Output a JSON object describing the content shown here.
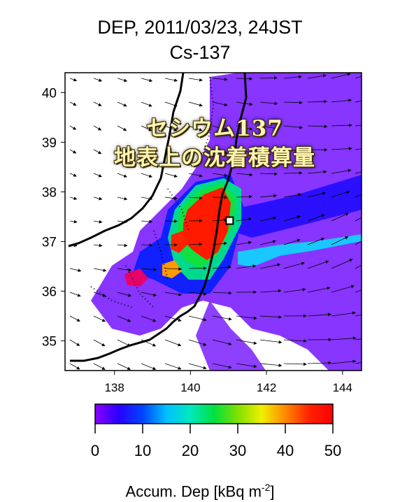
{
  "title_line1": "DEP, 2011/03/23,  24JST",
  "title_line2": "Cs-137",
  "overlay_line1": "セシウム137",
  "overlay_line2": "地表上の沈着積算量",
  "colorbar": {
    "label_main": "Accum. Dep [kBq m",
    "label_exp": "-2",
    "label_close": "]",
    "ticks": [
      0,
      10,
      20,
      30,
      40,
      50
    ],
    "range": [
      0,
      50
    ],
    "stops": [
      "#8a00ff",
      "#2a00ff",
      "#0044ff",
      "#00c0ff",
      "#00e8c0",
      "#00e040",
      "#80e000",
      "#f0f000",
      "#ff8800",
      "#ff2200",
      "#ff0000"
    ]
  },
  "chart_data": {
    "type": "heatmap",
    "title": "DEP, 2011/03/23,  24JST",
    "subtitle": "Cs-137",
    "xlabel": "",
    "ylabel": "",
    "xlim": [
      136.7,
      144.5
    ],
    "ylim": [
      34.4,
      40.4
    ],
    "x_ticks": [
      138,
      140,
      142,
      144
    ],
    "y_ticks": [
      35,
      36,
      37,
      38,
      39,
      40
    ],
    "grid": false,
    "legend": "colorbar-bottom",
    "value_units": "kBq m-2",
    "marker_site": {
      "lon": 141.03,
      "lat": 37.42
    },
    "deposition_areas": [
      {
        "level": "high",
        "value": 50,
        "lon": [
          140.3,
          141.2
        ],
        "lat": [
          37.2,
          38.0
        ]
      },
      {
        "level": "high",
        "value": 50,
        "lon": [
          140.6,
          140.8
        ],
        "lat": [
          36.9,
          37.2
        ]
      },
      {
        "level": "medium",
        "value": 25,
        "lon": [
          140.0,
          141.6
        ],
        "lat": [
          36.5,
          38.3
        ]
      },
      {
        "level": "low",
        "value": 5,
        "lon": [
          139.0,
          143.8
        ],
        "lat": [
          34.8,
          40.0
        ]
      }
    ]
  }
}
